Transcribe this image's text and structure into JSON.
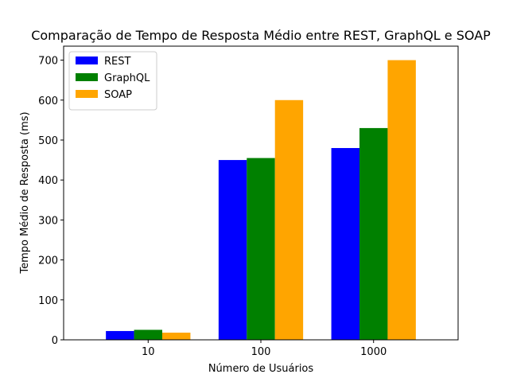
{
  "chart_data": {
    "type": "bar",
    "title": "Comparação de Tempo de Resposta Médio entre REST, GraphQL e SOAP",
    "xlabel": "Número de Usuários",
    "ylabel": "Tempo Médio de Resposta (ms)",
    "categories": [
      "10",
      "100",
      "1000"
    ],
    "series": [
      {
        "name": "REST",
        "color": "#0000ff",
        "values": [
          22,
          450,
          480
        ]
      },
      {
        "name": "GraphQL",
        "color": "#008000",
        "values": [
          25,
          455,
          530
        ]
      },
      {
        "name": "SOAP",
        "color": "#ffa500",
        "values": [
          18,
          600,
          700
        ]
      }
    ],
    "ylim": [
      0,
      735
    ],
    "yticks": [
      "0",
      "100",
      "200",
      "300",
      "400",
      "500",
      "600",
      "700"
    ],
    "grid": false,
    "legend_position": "top-left"
  }
}
